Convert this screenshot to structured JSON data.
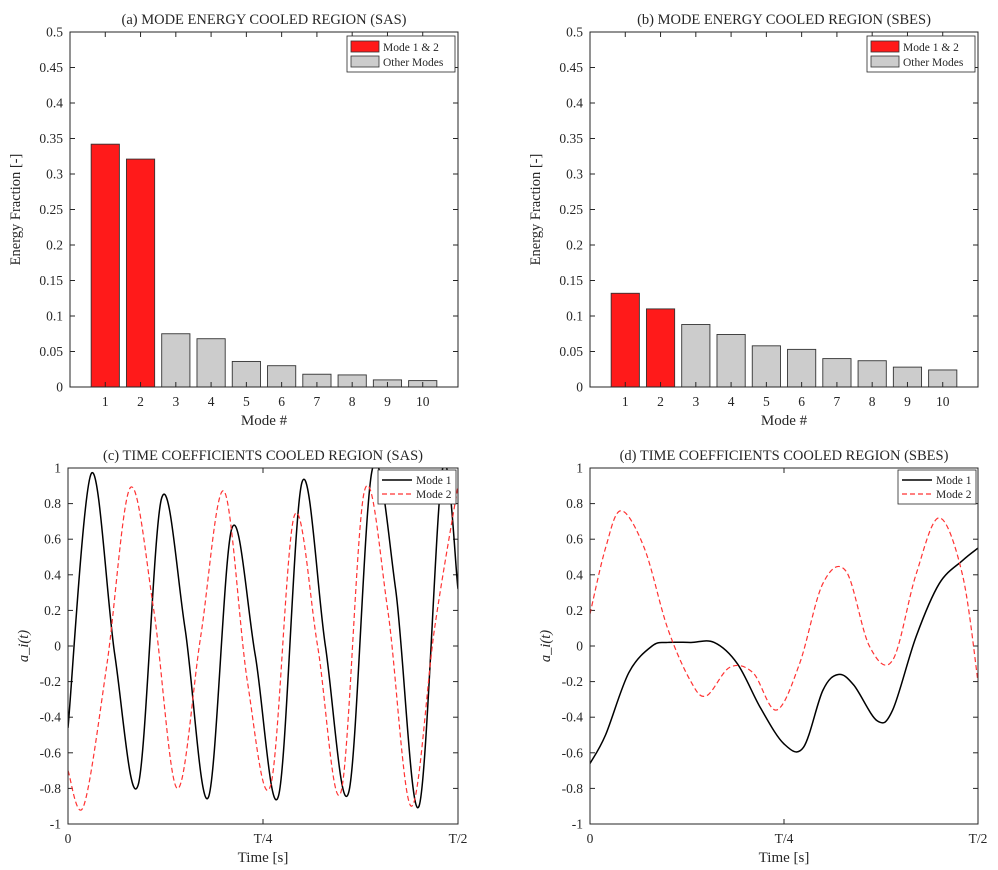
{
  "chart_data": [
    {
      "id": "a",
      "type": "bar",
      "title": "(a) MODE ENERGY COOLED REGION (SAS)",
      "xlabel": "Mode #",
      "ylabel": "Energy Fraction [-]",
      "ylim": [
        0,
        0.5
      ],
      "yticks": [
        "0",
        "0.05",
        "0.1",
        "0.15",
        "0.2",
        "0.25",
        "0.3",
        "0.35",
        "0.4",
        "0.45",
        "0.5"
      ],
      "categories": [
        "1",
        "2",
        "3",
        "4",
        "5",
        "6",
        "7",
        "8",
        "9",
        "10"
      ],
      "values": [
        0.342,
        0.321,
        0.075,
        0.068,
        0.036,
        0.03,
        0.018,
        0.017,
        0.01,
        0.009
      ],
      "series_group": [
        "Mode 1 & 2",
        "Mode 1 & 2",
        "Other Modes",
        "Other Modes",
        "Other Modes",
        "Other Modes",
        "Other Modes",
        "Other Modes",
        "Other Modes",
        "Other Modes"
      ],
      "legend": [
        {
          "label": "Mode 1 & 2",
          "color": "#ff1a1a"
        },
        {
          "label": "Other Modes",
          "color": "#cccccc"
        }
      ],
      "legend_position": "top-right",
      "grid": false
    },
    {
      "id": "b",
      "type": "bar",
      "title": "(b) MODE ENERGY COOLED REGION (SBES)",
      "xlabel": "Mode #",
      "ylabel": "Energy Fraction [-]",
      "ylim": [
        0,
        0.5
      ],
      "yticks": [
        "0",
        "0.05",
        "0.1",
        "0.15",
        "0.2",
        "0.25",
        "0.3",
        "0.35",
        "0.4",
        "0.45",
        "0.5"
      ],
      "categories": [
        "1",
        "2",
        "3",
        "4",
        "5",
        "6",
        "7",
        "8",
        "9",
        "10"
      ],
      "values": [
        0.132,
        0.11,
        0.088,
        0.074,
        0.058,
        0.053,
        0.04,
        0.037,
        0.028,
        0.024
      ],
      "series_group": [
        "Mode 1 & 2",
        "Mode 1 & 2",
        "Other Modes",
        "Other Modes",
        "Other Modes",
        "Other Modes",
        "Other Modes",
        "Other Modes",
        "Other Modes",
        "Other Modes"
      ],
      "legend": [
        {
          "label": "Mode 1 & 2",
          "color": "#ff1a1a"
        },
        {
          "label": "Other Modes",
          "color": "#cccccc"
        }
      ],
      "legend_position": "top-right",
      "grid": false
    },
    {
      "id": "c",
      "type": "line",
      "title": "(c) TIME COEFFICIENTS COOLED REGION (SAS)",
      "xlabel": "Time [s]",
      "ylabel": "a_i(t)",
      "xlim": [
        0,
        0.5
      ],
      "ylim": [
        -1,
        1
      ],
      "yticks": [
        "-1",
        "-0.8",
        "-0.6",
        "-0.4",
        "-0.2",
        "0",
        "0.2",
        "0.4",
        "0.6",
        "0.8",
        "1"
      ],
      "xticks": [
        {
          "x": 0,
          "label": "0"
        },
        {
          "x": 0.25,
          "label": "T/4"
        },
        {
          "x": 0.5,
          "label": "T/2"
        }
      ],
      "legend_position": "top-right",
      "grid": false,
      "series": [
        {
          "name": "Mode 1",
          "color": "#000000",
          "style": "solid",
          "x": [
            0,
            0.03,
            0.06,
            0.09,
            0.12,
            0.15,
            0.18,
            0.21,
            0.24,
            0.27,
            0.3,
            0.33,
            0.36,
            0.39,
            0.42,
            0.45,
            0.48,
            0.5
          ],
          "y": [
            -0.46,
            0.97,
            -0.05,
            -0.78,
            0.83,
            0.1,
            -0.85,
            0.66,
            -0.05,
            -0.84,
            0.92,
            0.0,
            -0.82,
            0.99,
            0.32,
            -0.9,
            0.99,
            0.32
          ]
        },
        {
          "name": "Mode 2",
          "color": "#ff3333",
          "style": "dashed",
          "x": [
            0,
            0.02,
            0.05,
            0.08,
            0.11,
            0.14,
            0.17,
            0.2,
            0.23,
            0.26,
            0.29,
            0.32,
            0.35,
            0.38,
            0.41,
            0.44,
            0.47,
            0.5
          ],
          "y": [
            -0.7,
            -0.9,
            -0.1,
            0.89,
            0.2,
            -0.8,
            0.05,
            0.87,
            -0.2,
            -0.78,
            0.73,
            0.0,
            -0.82,
            0.87,
            0.2,
            -0.9,
            0.1,
            0.9
          ]
        }
      ]
    },
    {
      "id": "d",
      "type": "line",
      "title": "(d) TIME COEFFICIENTS COOLED REGION (SBES)",
      "xlabel": "Time [s]",
      "ylabel": "a_i(t)",
      "xlim": [
        0,
        0.5
      ],
      "ylim": [
        -1,
        1
      ],
      "yticks": [
        "-1",
        "-0.8",
        "-0.6",
        "-0.4",
        "-0.2",
        "0",
        "0.2",
        "0.4",
        "0.6",
        "0.8",
        "1"
      ],
      "xticks": [
        {
          "x": 0,
          "label": "0"
        },
        {
          "x": 0.25,
          "label": "T/4"
        },
        {
          "x": 0.5,
          "label": "T/2"
        }
      ],
      "legend_position": "top-right",
      "grid": false,
      "series": [
        {
          "name": "Mode 1",
          "color": "#000000",
          "style": "solid",
          "x": [
            0,
            0.02,
            0.05,
            0.08,
            0.1,
            0.13,
            0.16,
            0.19,
            0.22,
            0.25,
            0.275,
            0.3,
            0.32,
            0.34,
            0.37,
            0.39,
            0.42,
            0.45,
            0.48,
            0.5
          ],
          "y": [
            -0.66,
            -0.5,
            -0.15,
            0.0,
            0.02,
            0.02,
            0.02,
            -0.1,
            -0.35,
            -0.55,
            -0.57,
            -0.25,
            -0.16,
            -0.22,
            -0.42,
            -0.36,
            0.05,
            0.35,
            0.48,
            0.55
          ]
        },
        {
          "name": "Mode 2",
          "color": "#ff3333",
          "style": "dashed",
          "x": [
            0,
            0.02,
            0.04,
            0.07,
            0.1,
            0.13,
            0.15,
            0.18,
            0.21,
            0.24,
            0.27,
            0.3,
            0.33,
            0.36,
            0.39,
            0.42,
            0.45,
            0.48,
            0.5
          ],
          "y": [
            0.18,
            0.55,
            0.76,
            0.55,
            0.1,
            -0.2,
            -0.28,
            -0.12,
            -0.15,
            -0.36,
            -0.1,
            0.35,
            0.42,
            0.0,
            -0.08,
            0.4,
            0.72,
            0.4,
            -0.2
          ]
        }
      ]
    }
  ]
}
